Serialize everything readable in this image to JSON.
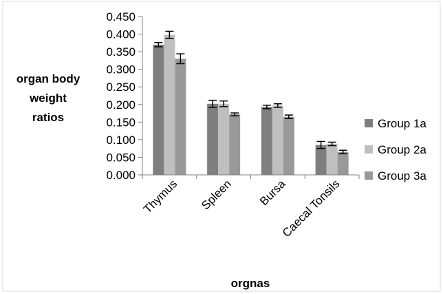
{
  "chart_data": {
    "type": "bar",
    "title": "",
    "xlabel": "orgnas",
    "ylabel_lines": [
      "organ body",
      "weight",
      "ratios"
    ],
    "categories": [
      "Thymus",
      "Spleen",
      "Bursa",
      "Caecal Tonsils"
    ],
    "series": [
      {
        "name": "Group 1a",
        "color": "#7f7f7f",
        "values": [
          0.37,
          0.202,
          0.193,
          0.085
        ],
        "errors": [
          0.006,
          0.01,
          0.005,
          0.01
        ]
      },
      {
        "name": "Group 2a",
        "color": "#bfbfbf",
        "values": [
          0.398,
          0.202,
          0.197,
          0.088
        ],
        "errors": [
          0.01,
          0.008,
          0.005,
          0.005
        ]
      },
      {
        "name": "Group 3a",
        "color": "#999999",
        "values": [
          0.33,
          0.172,
          0.165,
          0.065
        ],
        "errors": [
          0.014,
          0.004,
          0.005,
          0.005
        ]
      }
    ],
    "ylim": [
      0,
      0.45
    ],
    "yticks": [
      "0.000",
      "0.050",
      "0.100",
      "0.150",
      "0.200",
      "0.250",
      "0.300",
      "0.350",
      "0.400",
      "0.450"
    ],
    "grid": false,
    "legend": "right"
  }
}
